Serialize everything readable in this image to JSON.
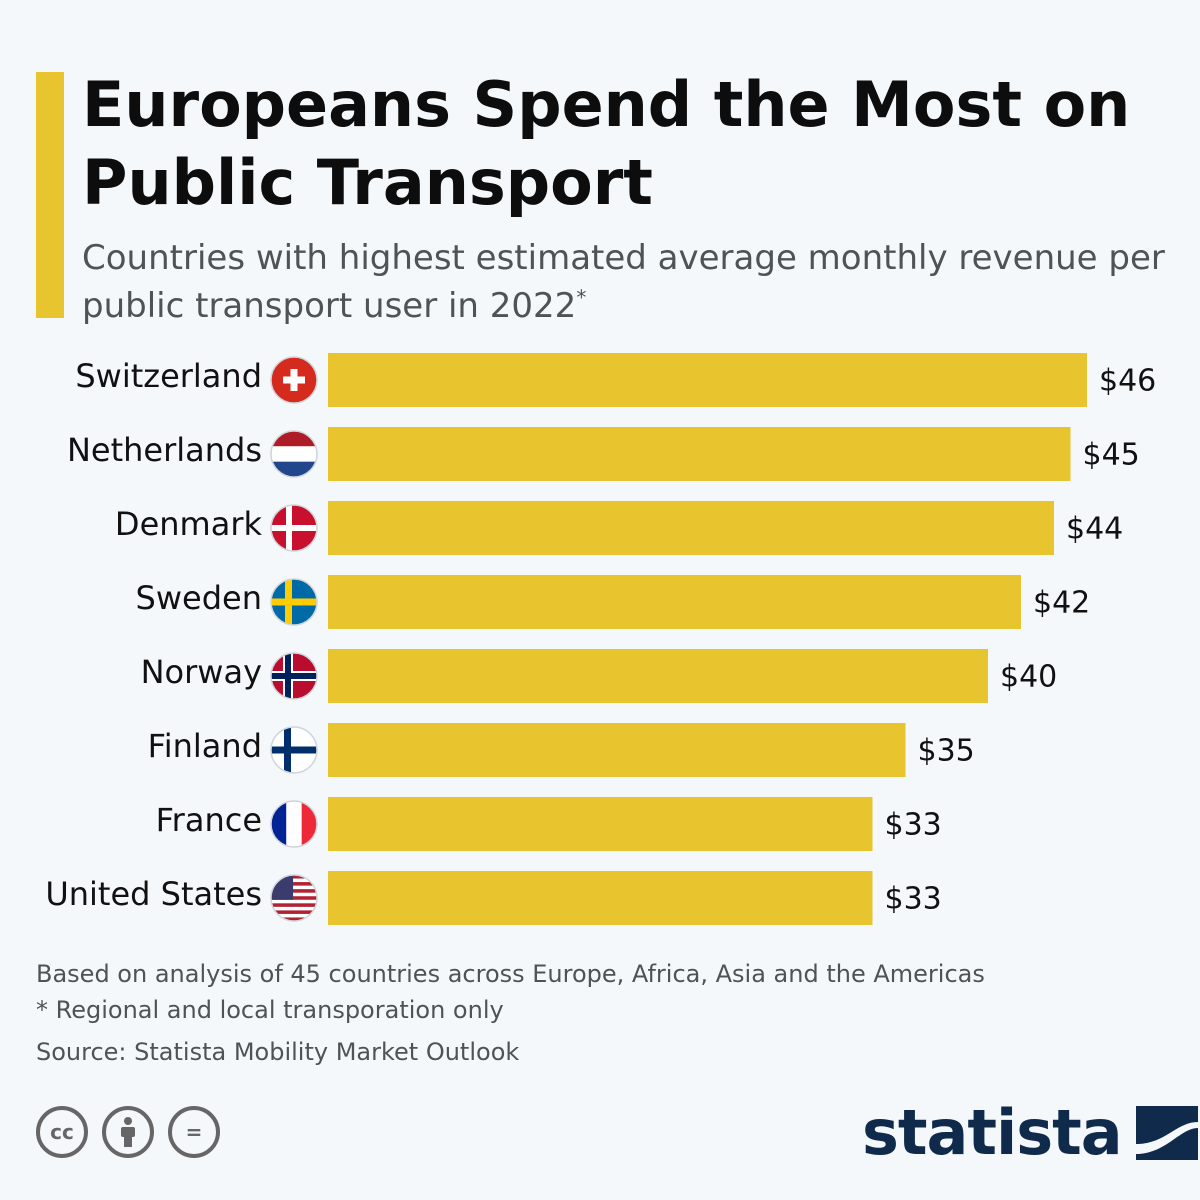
{
  "header": {
    "title": "Europeans Spend the Most on Public Transport",
    "subtitle": "Countries with highest estimated average monthly revenue per public transport user in 2022",
    "subtitle_marker": "*"
  },
  "chart_data": {
    "type": "bar",
    "orientation": "horizontal",
    "categories": [
      "Switzerland",
      "Netherlands",
      "Denmark",
      "Sweden",
      "Norway",
      "Finland",
      "France",
      "United States"
    ],
    "values": [
      46,
      45,
      44,
      42,
      40,
      35,
      33,
      33
    ],
    "value_labels": [
      "$46",
      "$45",
      "$44",
      "$42",
      "$40",
      "$35",
      "$33",
      "$33"
    ],
    "unit": "USD",
    "bar_color": "#e8c42f",
    "xlim": [
      0,
      46
    ]
  },
  "flags": [
    "switzerland-flag-icon",
    "netherlands-flag-icon",
    "denmark-flag-icon",
    "sweden-flag-icon",
    "norway-flag-icon",
    "finland-flag-icon",
    "france-flag-icon",
    "united-states-flag-icon"
  ],
  "footer": {
    "note1": "Based on analysis of 45 countries across Europe, Africa, Asia and the Americas",
    "note2": "* Regional and local transporation only",
    "source": "Source: Statista Mobility Market Outlook",
    "brand": "statista",
    "license_icons": [
      "cc-icon",
      "attribution-icon",
      "no-derivatives-icon"
    ],
    "cc_label": "cc",
    "nd_label": "="
  }
}
